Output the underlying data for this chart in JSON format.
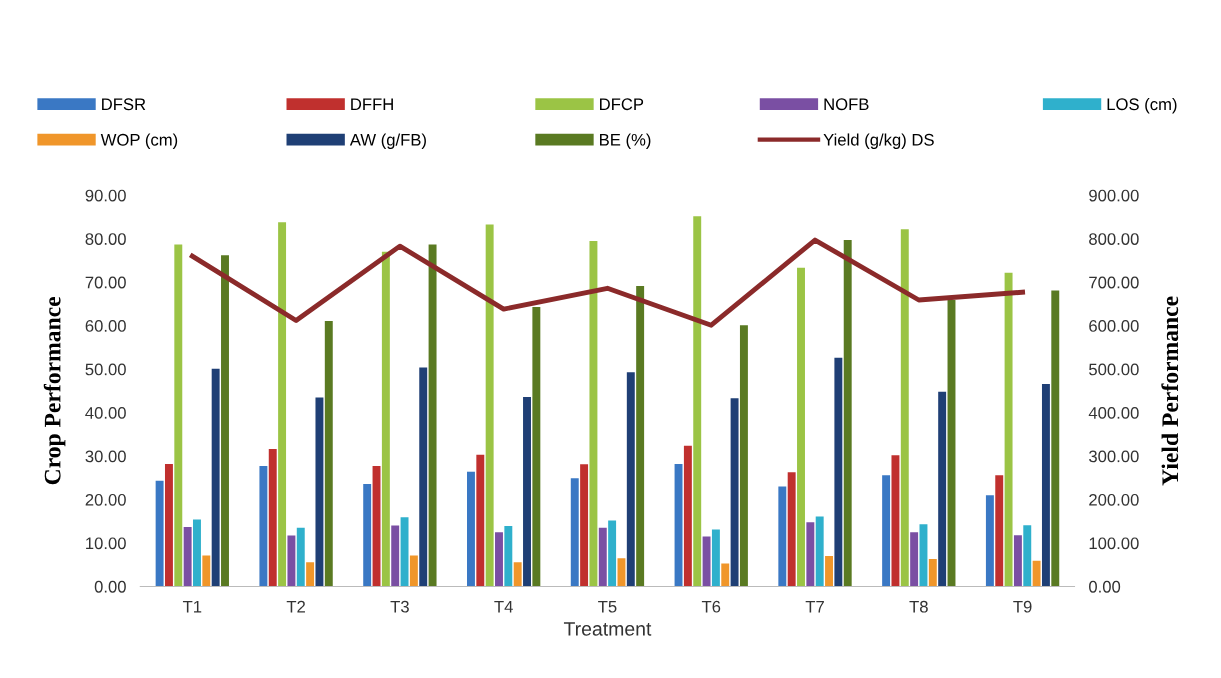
{
  "chart_data": {
    "type": "bar",
    "xlabel": "Treatment",
    "ylabel": "Crop Performance",
    "y2label": "Yield Performance",
    "categories": [
      "T1",
      "T2",
      "T3",
      "T4",
      "T5",
      "T6",
      "T7",
      "T8",
      "T9"
    ],
    "series": [
      {
        "name": "DFSR",
        "color": "#3a78c4",
        "values": [
          24.3,
          27.7,
          23.6,
          26.4,
          24.9,
          28.2,
          23.0,
          25.6,
          21.0
        ]
      },
      {
        "name": "DFFH",
        "color": "#c0302e",
        "values": [
          28.2,
          31.6,
          27.7,
          30.3,
          28.1,
          32.4,
          26.3,
          30.2,
          25.6
        ]
      },
      {
        "name": "DFCP",
        "color": "#9bc445",
        "values": [
          78.7,
          83.8,
          77.0,
          83.3,
          79.5,
          85.2,
          73.3,
          82.2,
          72.2
        ]
      },
      {
        "name": "NOFB",
        "color": "#7a4fa3",
        "values": [
          13.7,
          11.7,
          14.0,
          12.5,
          13.5,
          11.5,
          14.8,
          12.5,
          11.8
        ]
      },
      {
        "name": "LOS (cm)",
        "color": "#2fb0cc",
        "values": [
          15.4,
          13.5,
          15.9,
          13.9,
          15.2,
          13.1,
          16.1,
          14.3,
          14.1
        ]
      },
      {
        "name": "WOP (cm)",
        "color": "#f0962a",
        "values": [
          7.1,
          5.6,
          7.1,
          5.6,
          6.5,
          5.3,
          7.0,
          6.3,
          5.9
        ]
      },
      {
        "name": "AW (g/FB)",
        "color": "#1f3f75",
        "values": [
          50.1,
          43.5,
          50.4,
          43.6,
          49.3,
          43.3,
          52.6,
          44.8,
          46.6
        ]
      },
      {
        "name": "BE (%)",
        "color": "#5a7a22",
        "values": [
          76.2,
          61.1,
          78.7,
          64.3,
          69.1,
          60.1,
          79.7,
          65.9,
          68.1
        ]
      },
      {
        "name": "Yield (g/kg) DS",
        "color": "#8b2a2a",
        "type": "line",
        "axis": "y2",
        "values": [
          760,
          612,
          783,
          638,
          686,
          601,
          797,
          659,
          677
        ]
      }
    ],
    "ylim": [
      0,
      90
    ],
    "yticks": [
      {
        "value": 0,
        "label": "0.00"
      },
      {
        "value": 10,
        "label": "10.00"
      },
      {
        "value": 20,
        "label": "20.00"
      },
      {
        "value": 30,
        "label": "30.00"
      },
      {
        "value": 40,
        "label": "40.00"
      },
      {
        "value": 50,
        "label": "50.00"
      },
      {
        "value": 60,
        "label": "60.00"
      },
      {
        "value": 70,
        "label": "70.00"
      },
      {
        "value": 80,
        "label": "80.00"
      },
      {
        "value": 90,
        "label": "90.00"
      }
    ],
    "y2lim": [
      0,
      900
    ],
    "y2ticks": [
      {
        "value": 0,
        "label": "0.00"
      },
      {
        "value": 100,
        "label": "100.00"
      },
      {
        "value": 200,
        "label": "200.00"
      },
      {
        "value": 300,
        "label": "300.00"
      },
      {
        "value": 400,
        "label": "400.00"
      },
      {
        "value": 500,
        "label": "500.00"
      },
      {
        "value": 600,
        "label": "600.00"
      },
      {
        "value": 700,
        "label": "700.00"
      },
      {
        "value": 800,
        "label": "800.00"
      },
      {
        "value": 900,
        "label": "900.00"
      }
    ],
    "grid": false,
    "legend": "top",
    "marker": "none",
    "line_style": "solid"
  }
}
